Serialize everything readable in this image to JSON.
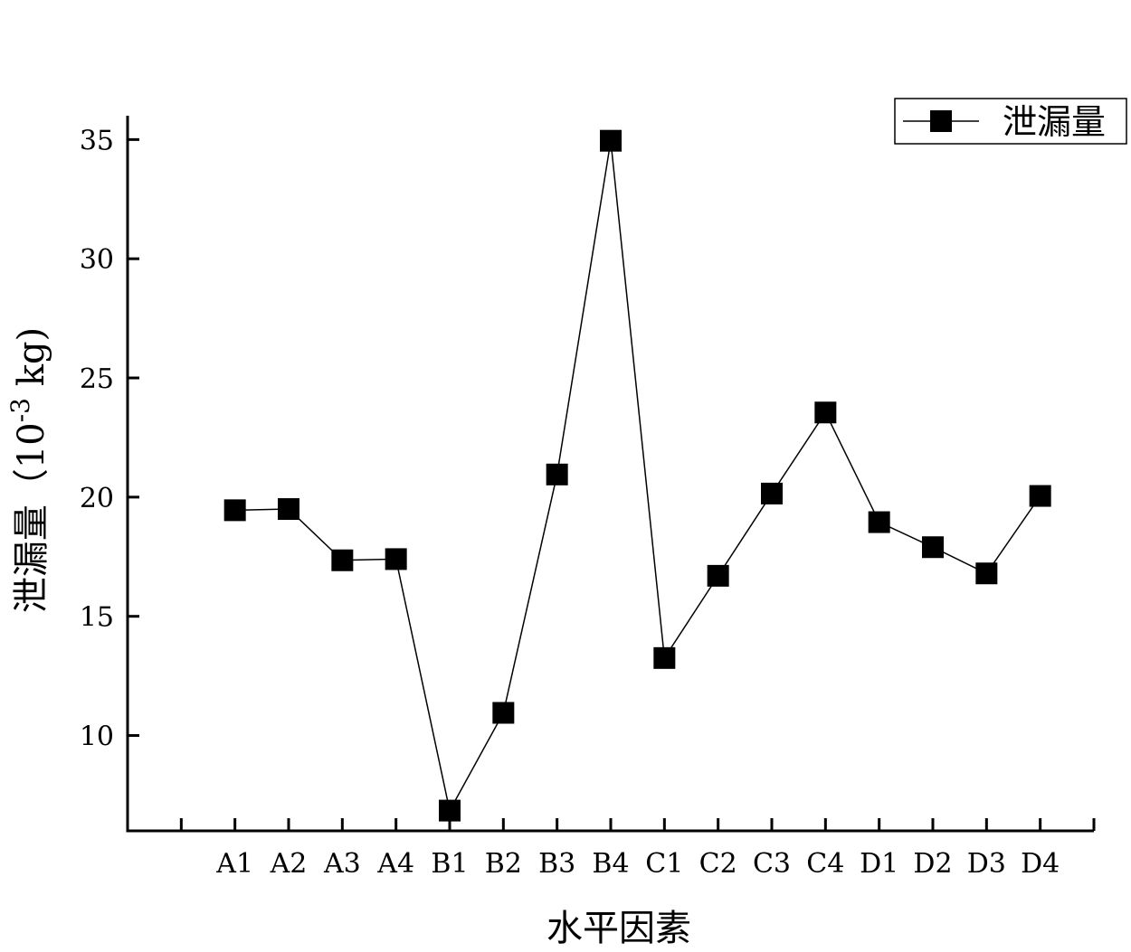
{
  "chart_data": {
    "type": "line",
    "title": "",
    "xlabel": "水平因素",
    "ylabel": "泄漏量（10",
    "ylabel_sup": "-3",
    "ylabel_unit": " kg)",
    "categories": [
      "A1",
      "A2",
      "A3",
      "A4",
      "B1",
      "B2",
      "B3",
      "B4",
      "C1",
      "C2",
      "C3",
      "C4",
      "D1",
      "D2",
      "D3",
      "D4"
    ],
    "series": [
      {
        "name": "泄漏量",
        "values": [
          19.45,
          19.5,
          17.35,
          17.4,
          6.85,
          10.95,
          20.95,
          34.95,
          13.25,
          16.7,
          20.15,
          23.55,
          18.95,
          17.9,
          16.8,
          20.05
        ],
        "color": "#000000",
        "marker": "square"
      }
    ],
    "ylim": [
      6,
      36
    ],
    "yticks": [
      10,
      15,
      20,
      25,
      30,
      35
    ],
    "x_slots": 17,
    "grid": false,
    "legend_position": "top-right"
  }
}
